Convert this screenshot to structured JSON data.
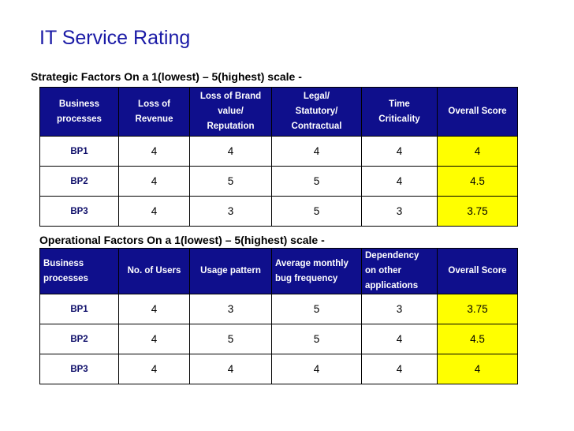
{
  "title": "IT Service Rating",
  "strategic": {
    "heading": "Strategic Factors On a 1(lowest) – 5(highest) scale -",
    "headers": [
      [
        "Business",
        "processes"
      ],
      [
        "Loss of",
        "Revenue"
      ],
      [
        "Loss of Brand",
        "value/",
        "Reputation"
      ],
      [
        "Legal/",
        "Statutory/",
        "Contractual"
      ],
      [
        "Time",
        "Criticality"
      ],
      [
        "Overall Score"
      ]
    ],
    "rows": [
      {
        "bp": "BP1",
        "c1": "4",
        "c2": "4",
        "c3": "4",
        "c4": "4",
        "score": "4"
      },
      {
        "bp": "BP2",
        "c1": "4",
        "c2": "5",
        "c3": "5",
        "c4": "4",
        "score": "4.5"
      },
      {
        "bp": "BP3",
        "c1": "4",
        "c2": "3",
        "c3": "5",
        "c4": "3",
        "score": "3.75"
      }
    ]
  },
  "operational": {
    "heading": "Operational Factors  On a 1(lowest) – 5(highest) scale -",
    "headers": [
      [
        "Business",
        "processes"
      ],
      [
        "No. of Users"
      ],
      [
        "Usage pattern"
      ],
      [
        "Average monthly",
        "bug frequency"
      ],
      [
        "Dependency",
        "on other",
        "applications"
      ],
      [
        "Overall Score"
      ]
    ],
    "rows": [
      {
        "bp": "BP1",
        "c1": "4",
        "c2": "3",
        "c3": "5",
        "c4": "3",
        "score": "3.75"
      },
      {
        "bp": "BP2",
        "c1": "4",
        "c2": "5",
        "c3": "5",
        "c4": "4",
        "score": "4.5"
      },
      {
        "bp": "BP3",
        "c1": "4",
        "c2": "4",
        "c3": "4",
        "c4": "4",
        "score": "4"
      }
    ]
  },
  "colors": {
    "header_bg": "#0f0f8c",
    "score_bg": "#ffff00",
    "title": "#1a1aa6"
  }
}
